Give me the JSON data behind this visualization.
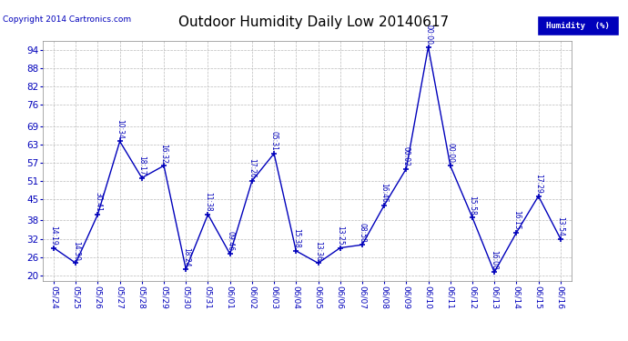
{
  "title": "Outdoor Humidity Daily Low 20140617",
  "copyright": "Copyright 2014 Cartronics.com",
  "legend_label": "Humidity  (%)",
  "x_labels": [
    "05/24",
    "05/25",
    "05/26",
    "05/27",
    "05/28",
    "05/29",
    "05/30",
    "05/31",
    "06/01",
    "06/02",
    "06/03",
    "06/04",
    "06/05",
    "06/06",
    "06/07",
    "06/08",
    "06/09",
    "06/10",
    "06/11",
    "06/12",
    "06/13",
    "06/14",
    "06/15",
    "06/16"
  ],
  "y_values": [
    29,
    24,
    40,
    64,
    52,
    56,
    22,
    40,
    27,
    51,
    60,
    28,
    24,
    29,
    30,
    43,
    55,
    95,
    56,
    39,
    21,
    34,
    46,
    32
  ],
  "point_labels": [
    "14:19",
    "14:30",
    "30:41",
    "10:34",
    "18:17",
    "16:32",
    "18:24",
    "11:38",
    "09:46",
    "17:26",
    "05:31",
    "15:38",
    "13:36",
    "13:25",
    "08:58",
    "16:46",
    "00:02",
    "00:00",
    "00:00",
    "15:58",
    "16:08",
    "16:15",
    "17:29",
    "13:54"
  ],
  "y_ticks": [
    20,
    26,
    32,
    38,
    45,
    51,
    57,
    63,
    69,
    76,
    82,
    88,
    94
  ],
  "y_min": 18,
  "y_max": 97,
  "line_color": "#0000BB",
  "marker_color": "#0000BB",
  "bg_color": "#ffffff",
  "grid_color": "#bbbbbb",
  "title_color": "#000000",
  "axis_label_color": "#0000BB",
  "legend_bg": "#0000BB",
  "legend_fg": "#ffffff",
  "copyright_color": "#0000BB",
  "figwidth": 6.9,
  "figheight": 3.75,
  "dpi": 100
}
